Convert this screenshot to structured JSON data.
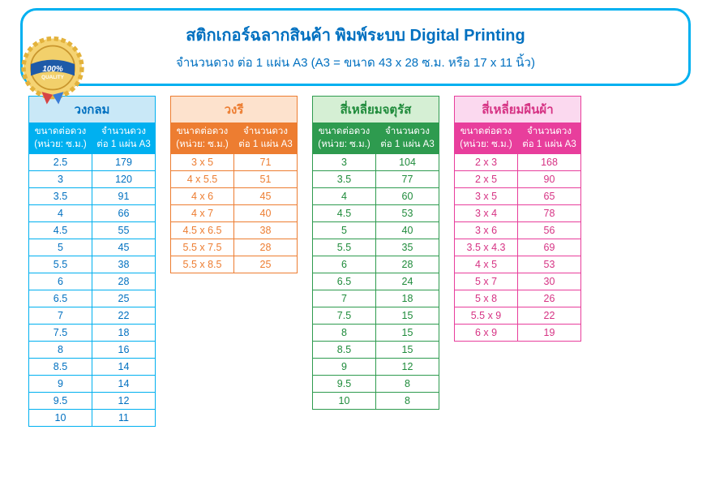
{
  "header": {
    "title": "สติกเกอร์ฉลากสินค้า  พิมพ์ระบบ Digital Printing",
    "subtitle": "จำนวนดวง ต่อ 1 แผ่น A3  (A3  =  ขนาด 43 x 28 ซ.ม.  หรือ  17 x 11 นิ้ว)",
    "border_color": "#00b0f0",
    "text_color": "#0070c0",
    "title_fontsize": 20,
    "sub_fontsize": 15
  },
  "badge": {
    "top_text": "100%",
    "bottom_text": "QUALITY",
    "ribbon_color": "#1e5aa8",
    "gold_outer": "#e3b23c",
    "gold_inner": "#f2d06b",
    "scallop_color": "#f5d372"
  },
  "column_headers": {
    "size_l1": "ขนาดต่อดวง",
    "size_l2": "(หน่วย: ซ.ม.)",
    "qty_l1": "จำนวนดวง",
    "qty_l2": "ต่อ 1 แผ่น A3"
  },
  "tables": [
    {
      "name": "circle",
      "title": "วงกลม",
      "theme": "t-blue",
      "colors": {
        "border": "#00b0f0",
        "header_bg": "#00b0f0",
        "title_bg": "#c9e8f7",
        "text": "#0070c0"
      },
      "rows": [
        {
          "size": "2.5",
          "qty": "179"
        },
        {
          "size": "3",
          "qty": "120"
        },
        {
          "size": "3.5",
          "qty": "91"
        },
        {
          "size": "4",
          "qty": "66"
        },
        {
          "size": "4.5",
          "qty": "55"
        },
        {
          "size": "5",
          "qty": "45"
        },
        {
          "size": "5.5",
          "qty": "38"
        },
        {
          "size": "6",
          "qty": "28"
        },
        {
          "size": "6.5",
          "qty": "25"
        },
        {
          "size": "7",
          "qty": "22"
        },
        {
          "size": "7.5",
          "qty": "18"
        },
        {
          "size": "8",
          "qty": "16"
        },
        {
          "size": "8.5",
          "qty": "14"
        },
        {
          "size": "9",
          "qty": "14"
        },
        {
          "size": "9.5",
          "qty": "12"
        },
        {
          "size": "10",
          "qty": "11"
        }
      ]
    },
    {
      "name": "oval",
      "title": "วงรี",
      "theme": "t-orange",
      "colors": {
        "border": "#ed7d31",
        "header_bg": "#ed7d31",
        "title_bg": "#fde2cd",
        "text": "#ed7d31"
      },
      "rows": [
        {
          "size": "3 x 5",
          "qty": "71"
        },
        {
          "size": "4 x 5.5",
          "qty": "51"
        },
        {
          "size": "4 x 6",
          "qty": "45"
        },
        {
          "size": "4 x 7",
          "qty": "40"
        },
        {
          "size": "4.5 x 6.5",
          "qty": "38"
        },
        {
          "size": "5.5 x 7.5",
          "qty": "28"
        },
        {
          "size": "5.5 x 8.5",
          "qty": "25"
        }
      ]
    },
    {
      "name": "square",
      "title": "สี่เหลี่ยมจตุรัส",
      "theme": "t-green",
      "colors": {
        "border": "#2e9b4f",
        "header_bg": "#2e9b4f",
        "title_bg": "#d5efd4",
        "text": "#1f8b3b"
      },
      "rows": [
        {
          "size": "3",
          "qty": "104"
        },
        {
          "size": "3.5",
          "qty": "77"
        },
        {
          "size": "4",
          "qty": "60"
        },
        {
          "size": "4.5",
          "qty": "53"
        },
        {
          "size": "5",
          "qty": "40"
        },
        {
          "size": "5.5",
          "qty": "35"
        },
        {
          "size": "6",
          "qty": "28"
        },
        {
          "size": "6.5",
          "qty": "24"
        },
        {
          "size": "7",
          "qty": "18"
        },
        {
          "size": "7.5",
          "qty": "15"
        },
        {
          "size": "8",
          "qty": "15"
        },
        {
          "size": "8.5",
          "qty": "15"
        },
        {
          "size": "9",
          "qty": "12"
        },
        {
          "size": "9.5",
          "qty": "8"
        },
        {
          "size": "10",
          "qty": "8"
        }
      ]
    },
    {
      "name": "rectangle",
      "title": "สี่เหลี่ยมผืนผ้า",
      "theme": "t-pink",
      "colors": {
        "border": "#e83e9c",
        "header_bg": "#e83e9c",
        "title_bg": "#fbd9ef",
        "text": "#d63384"
      },
      "rows": [
        {
          "size": "2 x 3",
          "qty": "168"
        },
        {
          "size": "2 x 5",
          "qty": "90"
        },
        {
          "size": "3 x 5",
          "qty": "65"
        },
        {
          "size": "3 x 4",
          "qty": "78"
        },
        {
          "size": "3 x 6",
          "qty": "56"
        },
        {
          "size": "3.5 x 4.3",
          "qty": "69"
        },
        {
          "size": "4 x 5",
          "qty": "53"
        },
        {
          "size": "5 x 7",
          "qty": "30"
        },
        {
          "size": "5 x 8",
          "qty": "26"
        },
        {
          "size": "5.5 x 9",
          "qty": "22"
        },
        {
          "size": "6 x 9",
          "qty": "19"
        }
      ]
    }
  ]
}
